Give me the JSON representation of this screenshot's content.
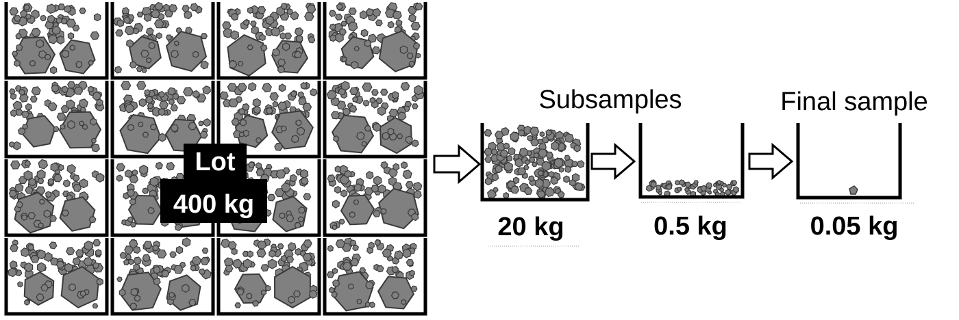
{
  "lot": {
    "line1": "Lot",
    "line2": "400 kg"
  },
  "headings": {
    "subsamples": "Subsamples",
    "final": "Final sample"
  },
  "masses": {
    "subsample_1": "20 kg",
    "subsample_2": "0.5 kg",
    "final": "0.05 kg"
  },
  "colors": {
    "particle_fill": "#808080",
    "particle_stroke": "#3a3a3a",
    "container": "#000000",
    "label_box": "#000000",
    "label_text": "#ffffff",
    "background": "#ffffff"
  },
  "lot_grid": {
    "rows": 4,
    "cols": 4
  }
}
